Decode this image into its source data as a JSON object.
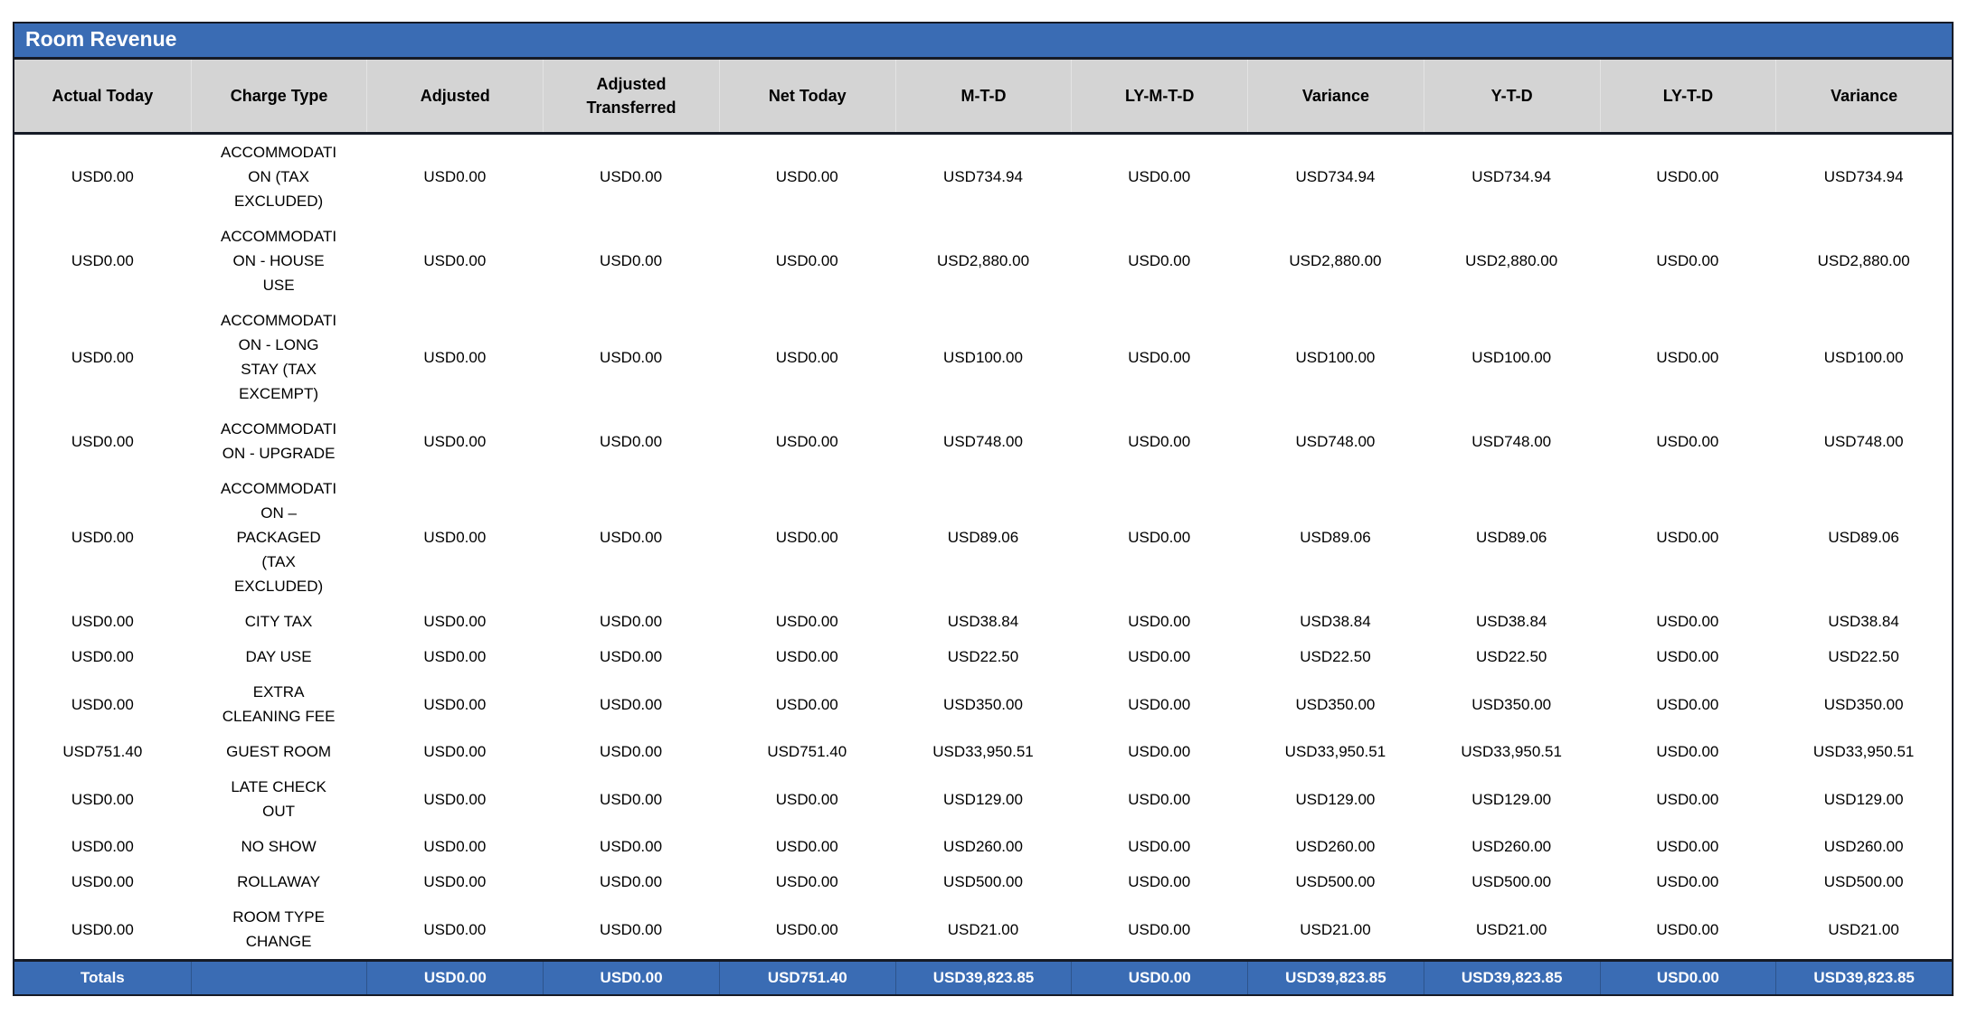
{
  "report": {
    "title": "Room Revenue"
  },
  "colors": {
    "header_blue": "#3a6cb4",
    "header_gray": "#d4d4d4",
    "border_dark": "#161b26",
    "title_text": "#ffffff",
    "body_text": "#000000"
  },
  "table": {
    "columns": [
      "Actual Today",
      "Charge Type",
      "Adjusted",
      "Adjusted Transferred",
      "Net Today",
      "M-T-D",
      "LY-M-T-D",
      "Variance",
      "Y-T-D",
      "LY-T-D",
      "Variance"
    ],
    "rows": [
      [
        "USD0.00",
        "ACCOMMODATION (TAX EXCLUDED)",
        "USD0.00",
        "USD0.00",
        "USD0.00",
        "USD734.94",
        "USD0.00",
        "USD734.94",
        "USD734.94",
        "USD0.00",
        "USD734.94"
      ],
      [
        "USD0.00",
        "ACCOMMODATION - HOUSE USE",
        "USD0.00",
        "USD0.00",
        "USD0.00",
        "USD2,880.00",
        "USD0.00",
        "USD2,880.00",
        "USD2,880.00",
        "USD0.00",
        "USD2,880.00"
      ],
      [
        "USD0.00",
        "ACCOMMODATION - LONG STAY (TAX EXCEMPT)",
        "USD0.00",
        "USD0.00",
        "USD0.00",
        "USD100.00",
        "USD0.00",
        "USD100.00",
        "USD100.00",
        "USD0.00",
        "USD100.00"
      ],
      [
        "USD0.00",
        "ACCOMMODATION - UPGRADE",
        "USD0.00",
        "USD0.00",
        "USD0.00",
        "USD748.00",
        "USD0.00",
        "USD748.00",
        "USD748.00",
        "USD0.00",
        "USD748.00"
      ],
      [
        "USD0.00",
        "ACCOMMODATION – PACKAGED (TAX EXCLUDED)",
        "USD0.00",
        "USD0.00",
        "USD0.00",
        "USD89.06",
        "USD0.00",
        "USD89.06",
        "USD89.06",
        "USD0.00",
        "USD89.06"
      ],
      [
        "USD0.00",
        "CITY TAX",
        "USD0.00",
        "USD0.00",
        "USD0.00",
        "USD38.84",
        "USD0.00",
        "USD38.84",
        "USD38.84",
        "USD0.00",
        "USD38.84"
      ],
      [
        "USD0.00",
        "DAY USE",
        "USD0.00",
        "USD0.00",
        "USD0.00",
        "USD22.50",
        "USD0.00",
        "USD22.50",
        "USD22.50",
        "USD0.00",
        "USD22.50"
      ],
      [
        "USD0.00",
        "EXTRA CLEANING FEE",
        "USD0.00",
        "USD0.00",
        "USD0.00",
        "USD350.00",
        "USD0.00",
        "USD350.00",
        "USD350.00",
        "USD0.00",
        "USD350.00"
      ],
      [
        "USD751.40",
        "GUEST ROOM",
        "USD0.00",
        "USD0.00",
        "USD751.40",
        "USD33,950.51",
        "USD0.00",
        "USD33,950.51",
        "USD33,950.51",
        "USD0.00",
        "USD33,950.51"
      ],
      [
        "USD0.00",
        "LATE CHECK OUT",
        "USD0.00",
        "USD0.00",
        "USD0.00",
        "USD129.00",
        "USD0.00",
        "USD129.00",
        "USD129.00",
        "USD0.00",
        "USD129.00"
      ],
      [
        "USD0.00",
        "NO SHOW",
        "USD0.00",
        "USD0.00",
        "USD0.00",
        "USD260.00",
        "USD0.00",
        "USD260.00",
        "USD260.00",
        "USD0.00",
        "USD260.00"
      ],
      [
        "USD0.00",
        "ROLLAWAY",
        "USD0.00",
        "USD0.00",
        "USD0.00",
        "USD500.00",
        "USD0.00",
        "USD500.00",
        "USD500.00",
        "USD0.00",
        "USD500.00"
      ],
      [
        "USD0.00",
        "ROOM TYPE CHANGE",
        "USD0.00",
        "USD0.00",
        "USD0.00",
        "USD21.00",
        "USD0.00",
        "USD21.00",
        "USD21.00",
        "USD0.00",
        "USD21.00"
      ]
    ],
    "totals": [
      "Totals",
      "",
      "USD0.00",
      "USD0.00",
      "USD751.40",
      "USD39,823.85",
      "USD0.00",
      "USD39,823.85",
      "USD39,823.85",
      "USD0.00",
      "USD39,823.85"
    ]
  }
}
